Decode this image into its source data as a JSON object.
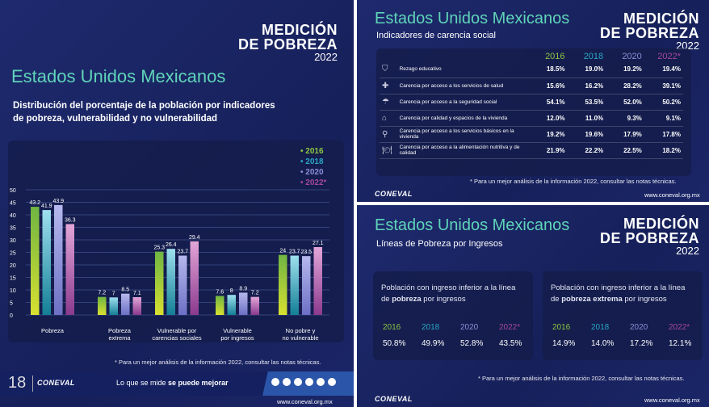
{
  "colors": {
    "2016": "#8cc63f",
    "2018": "#2aa6c6",
    "2020": "#8b8fd8",
    "2022": "#a5479f",
    "title": "#5fd4b8"
  },
  "logo": {
    "l1": "MEDICIÓN",
    "l2": "DE POBREZA",
    "l3": "2022"
  },
  "left": {
    "title": "Estados Unidos Mexicanos",
    "subtitle1": "Distribución del porcentaje de la población por indicadores",
    "subtitle2": "de pobreza, vulnerabilidad y no vulnerabilidad",
    "note": "* Para un mejor análisis de la información 2022, consultar las notas técnicas.",
    "footer": {
      "years_badge": "18",
      "brand": "CONEVAL",
      "slogan_a": "Lo que se mide ",
      "slogan_b": "se puede mejorar",
      "url": "www.coneval.org.mx",
      "social": [
        "facebook",
        "x",
        "instagram",
        "youtube",
        "web",
        "podcast"
      ]
    }
  },
  "chart_data": {
    "type": "bar",
    "title": "Distribución del porcentaje de la población por indicadores de pobreza, vulnerabilidad y no vulnerabilidad",
    "categories": [
      "Pobreza",
      "Pobreza extrema",
      "Vulnerable por carencias sociales",
      "Vulnerable por ingresos",
      "No pobre y no vulnerable"
    ],
    "category_lines": [
      [
        "Pobreza"
      ],
      [
        "Pobreza",
        "extrema"
      ],
      [
        "Vulnerable por",
        "carencias sociales"
      ],
      [
        "Vulnerable",
        "por ingresos"
      ],
      [
        "No pobre y",
        "no vulnerable"
      ]
    ],
    "series": [
      {
        "name": "2016",
        "values": [
          43.2,
          7.2,
          25.3,
          7.6,
          24.0
        ]
      },
      {
        "name": "2018",
        "values": [
          41.9,
          7.0,
          26.4,
          8.0,
          23.7
        ]
      },
      {
        "name": "2020",
        "values": [
          43.9,
          8.5,
          23.7,
          8.9,
          23.5
        ]
      },
      {
        "name": "2022*",
        "values": [
          36.3,
          7.1,
          29.4,
          7.2,
          27.1
        ]
      }
    ],
    "ylim": [
      0,
      50
    ],
    "yticks": [
      0,
      5,
      10,
      15,
      20,
      25,
      30,
      35,
      40,
      45,
      50
    ],
    "grid": true,
    "legend": "top-right"
  },
  "social": {
    "title": "Estados Unidos Mexicanos",
    "subtitle": "Indicadores de carencia social",
    "years": [
      "2016",
      "2018",
      "2020",
      "2022*"
    ],
    "rows": [
      {
        "icon": "education-icon",
        "label": "Rezago educativo",
        "values": [
          "18.5%",
          "19.0%",
          "19.2%",
          "19.4%"
        ]
      },
      {
        "icon": "health-icon",
        "label": "Carencia por acceso a los servicios de salud",
        "values": [
          "15.6%",
          "16.2%",
          "28.2%",
          "39.1%"
        ]
      },
      {
        "icon": "social-security-icon",
        "label": "Carencia por acceso a la seguridad social",
        "values": [
          "54.1%",
          "53.5%",
          "52.0%",
          "50.2%"
        ]
      },
      {
        "icon": "housing-icon",
        "label": "Carencia por calidad y espacios de la vivienda",
        "values": [
          "12.0%",
          "11.0%",
          "9.3%",
          "9.1%"
        ]
      },
      {
        "icon": "faucet-icon",
        "label": "Carencia por acceso a los servicios básicos en la vivienda",
        "values": [
          "19.2%",
          "19.6%",
          "17.9%",
          "17.8%"
        ]
      },
      {
        "icon": "food-icon",
        "label": "Carencia por acceso a la alimentación nutritiva y de calidad",
        "values": [
          "21.9%",
          "22.2%",
          "22.5%",
          "18.2%"
        ]
      }
    ],
    "note": "* Para un mejor análisis de la información 2022, consultar las notas técnicas.",
    "brand": "CONEVAL",
    "url": "www.coneval.org.mx"
  },
  "income": {
    "title": "Estados Unidos Mexicanos",
    "subtitle": "Líneas de Pobreza por Ingresos",
    "cards": [
      {
        "l1": "Población con ingreso inferior a la línea",
        "l2a": "de ",
        "l2b": "pobreza",
        "l2c": " por ingresos",
        "years": [
          "2016",
          "2018",
          "2020",
          "2022*"
        ],
        "values": [
          "50.8%",
          "49.9%",
          "52.8%",
          "43.5%"
        ]
      },
      {
        "l1": "Población con ingreso inferior a la línea",
        "l2a": "de ",
        "l2b": "pobreza extrema",
        "l2c": " por ingresos",
        "years": [
          "2016",
          "2018",
          "2020",
          "2022*"
        ],
        "values": [
          "14.9%",
          "14.0%",
          "17.2%",
          "12.1%"
        ]
      }
    ],
    "note": "* Para un mejor análisis de la información 2022, consultar las notas técnicas.",
    "brand": "CONEVAL",
    "url": "www.coneval.org.mx"
  }
}
